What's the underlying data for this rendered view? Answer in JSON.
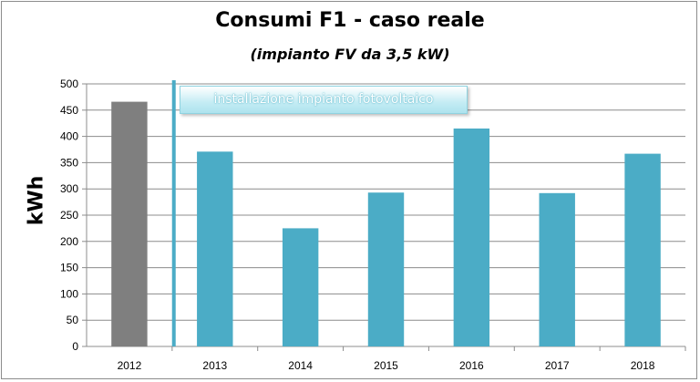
{
  "chart_data": {
    "type": "bar",
    "title": "Consumi F1 - caso reale",
    "subtitle": "(impianto FV da 3,5 kW)",
    "xlabel": "",
    "ylabel": "kWh",
    "categories": [
      "2012",
      "2013",
      "2014",
      "2015",
      "2016",
      "2017",
      "2018"
    ],
    "values": [
      466,
      371,
      225,
      293,
      415,
      292,
      367
    ],
    "ylim": [
      0,
      500
    ],
    "yticks": [
      0,
      50,
      100,
      150,
      200,
      250,
      300,
      350,
      400,
      450,
      500
    ],
    "grid": true,
    "legend": "none",
    "annotation": "installazione impianto fotovoltaico",
    "colors": {
      "first_bar": "#7f7f7f",
      "bars": "#4bacc6",
      "marker_line": "#4bacc6",
      "grid": "#8c8c8c"
    }
  }
}
